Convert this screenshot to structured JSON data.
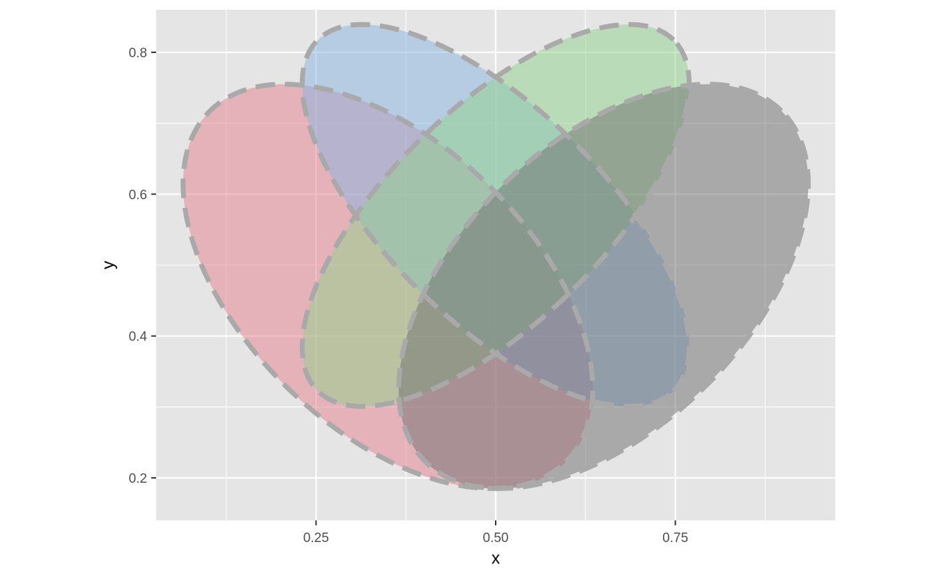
{
  "chart_data": {
    "type": "area",
    "title": "",
    "xlabel": "x",
    "ylabel": "y",
    "xlim": [
      0.0275,
      0.9725
    ],
    "ylim": [
      0.14,
      0.86
    ],
    "x_ticks": [
      {
        "value": 0.25,
        "label": "0.25"
      },
      {
        "value": 0.5,
        "label": "0.50"
      },
      {
        "value": 0.75,
        "label": "0.75"
      }
    ],
    "y_ticks": [
      {
        "value": 0.2,
        "label": "0.2"
      },
      {
        "value": 0.4,
        "label": "0.4"
      },
      {
        "value": 0.6,
        "label": "0.6"
      },
      {
        "value": 0.8,
        "label": "0.8"
      }
    ],
    "grid": true,
    "background": "#e5e5e5",
    "grid_color": "#ffffff",
    "outline_color": "#a9a9a9",
    "outline_style": "dashed",
    "fill_opacity": 0.5,
    "series": [
      {
        "fill": "#e57f8f",
        "shape": "ellipse",
        "center": [
          0.35,
          0.47
        ],
        "semi_axes": [
          0.35,
          0.2
        ],
        "angle_deg": -45
      },
      {
        "fill": "#86b3e2",
        "shape": "ellipse",
        "center": [
          0.5,
          0.57
        ],
        "semi_axes": [
          0.35,
          0.15
        ],
        "angle_deg": -45
      },
      {
        "fill": "#8fd289",
        "shape": "ellipse",
        "center": [
          0.5,
          0.57
        ],
        "semi_axes": [
          0.35,
          0.15
        ],
        "angle_deg": 45
      },
      {
        "fill": "#6e6e6e",
        "shape": "ellipse",
        "center": [
          0.65,
          0.47
        ],
        "semi_axes": [
          0.35,
          0.2
        ],
        "angle_deg": 45
      }
    ]
  }
}
